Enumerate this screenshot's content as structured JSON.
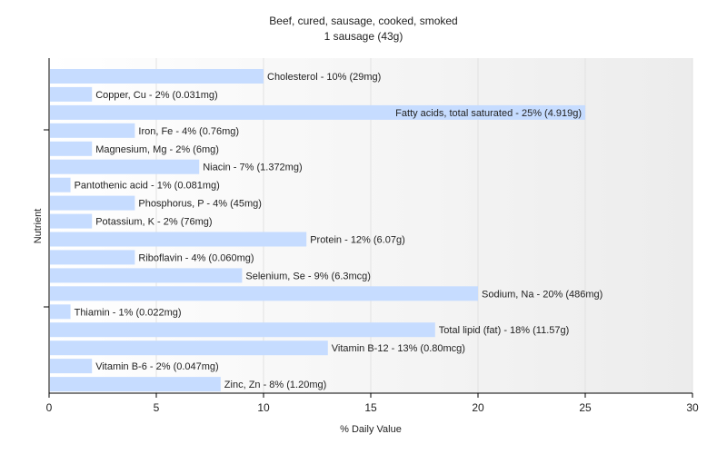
{
  "chart_data": {
    "type": "bar",
    "orientation": "horizontal",
    "title": "Beef, cured, sausage, cooked, smoked",
    "subtitle": "1 sausage (43g)",
    "xlabel": "% Daily Value",
    "ylabel": "Nutrient",
    "xlim": [
      0,
      30
    ],
    "xticks": [
      0,
      5,
      10,
      15,
      20,
      25,
      30
    ],
    "grid": true,
    "bar_color": "#c6dcff",
    "categories": [
      "Cholesterol",
      "Copper, Cu",
      "Fatty acids, total saturated",
      "Iron, Fe",
      "Magnesium, Mg",
      "Niacin",
      "Pantothenic acid",
      "Phosphorus, P",
      "Potassium, K",
      "Protein",
      "Riboflavin",
      "Selenium, Se",
      "Sodium, Na",
      "Thiamin",
      "Total lipid (fat)",
      "Vitamin B-12",
      "Vitamin B-6",
      "Zinc, Zn"
    ],
    "values": [
      10,
      2,
      25,
      4,
      2,
      7,
      1,
      4,
      2,
      12,
      4,
      9,
      20,
      1,
      18,
      13,
      2,
      8
    ],
    "labels": [
      "Cholesterol - 10% (29mg)",
      "Copper, Cu - 2% (0.031mg)",
      "Fatty acids, total saturated - 25% (4.919g)",
      "Iron, Fe - 4% (0.76mg)",
      "Magnesium, Mg - 2% (6mg)",
      "Niacin - 7% (1.372mg)",
      "Pantothenic acid - 1% (0.081mg)",
      "Phosphorus, P - 4% (45mg)",
      "Potassium, K - 2% (76mg)",
      "Protein - 12% (6.07g)",
      "Riboflavin - 4% (0.060mg)",
      "Selenium, Se - 9% (6.3mcg)",
      "Sodium, Na - 20% (486mg)",
      "Thiamin - 1% (0.022mg)",
      "Total lipid (fat) - 18% (11.57g)",
      "Vitamin B-12 - 13% (0.80mcg)",
      "Vitamin B-6 - 2% (0.047mg)",
      "Zinc, Zn - 8% (1.20mg)"
    ]
  }
}
